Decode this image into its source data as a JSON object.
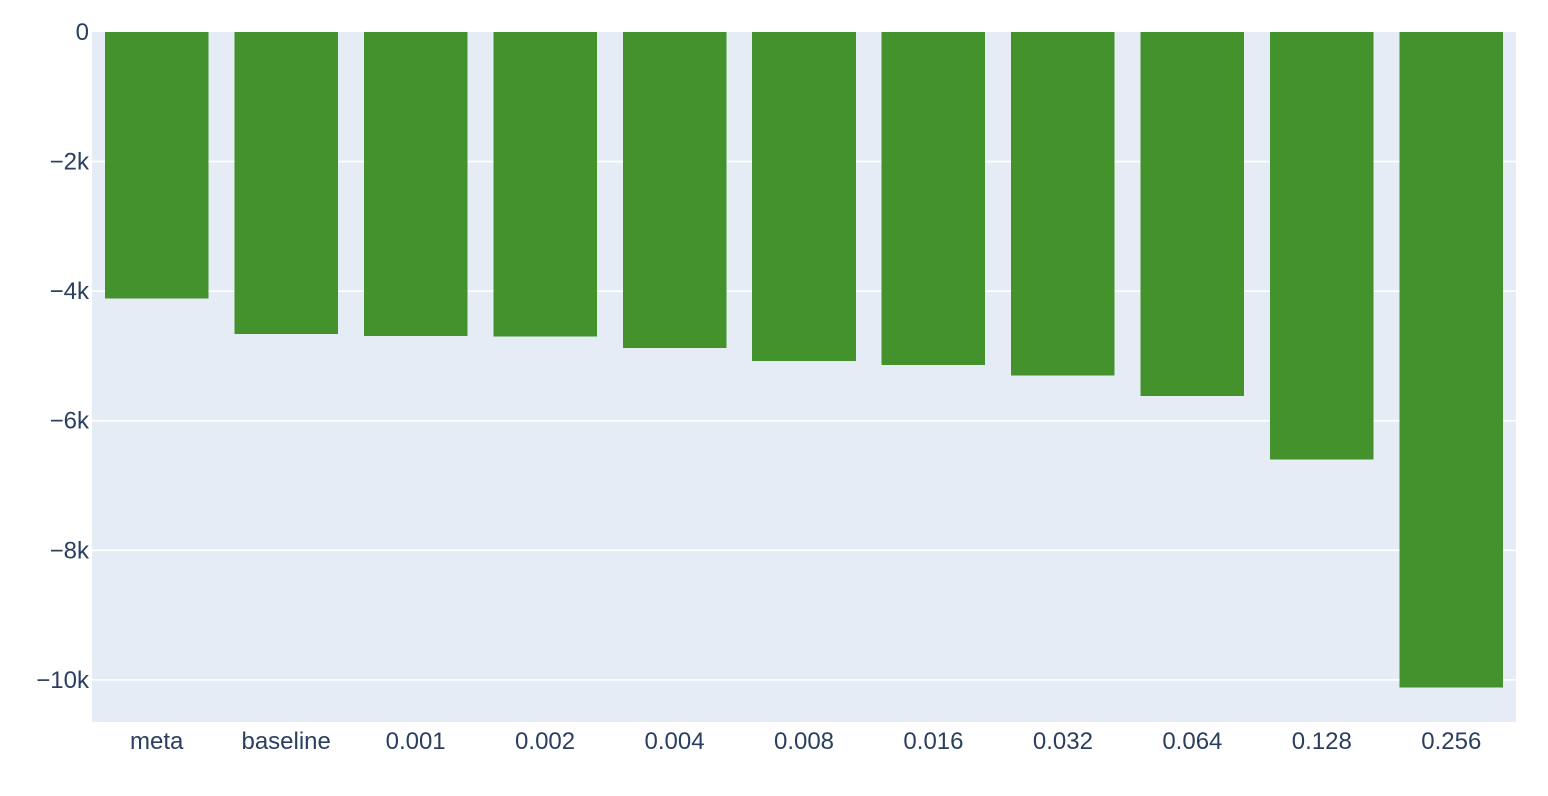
{
  "colors": {
    "plot_background": "#e5ecf6",
    "bar": "#44922b",
    "grid": "#ffffff",
    "text": "#2a3f5f"
  },
  "chart_data": {
    "type": "bar",
    "categories": [
      "meta",
      "baseline",
      "0.001",
      "0.002",
      "0.004",
      "0.008",
      "0.016",
      "0.032",
      "0.064",
      "0.128",
      "0.256"
    ],
    "values": [
      -4110,
      -4660,
      -4690,
      -4700,
      -4880,
      -5080,
      -5140,
      -5300,
      -5620,
      -6600,
      -10120
    ],
    "ylim": [
      -10650,
      0
    ],
    "y_ticks": [
      0,
      -2000,
      -4000,
      -6000,
      -8000,
      -10000
    ],
    "y_tick_labels": [
      "0",
      "−2k",
      "−4k",
      "−6k",
      "−8k",
      "−10k"
    ],
    "title": "",
    "xlabel": "",
    "ylabel": "",
    "grid": true,
    "legend": false
  }
}
